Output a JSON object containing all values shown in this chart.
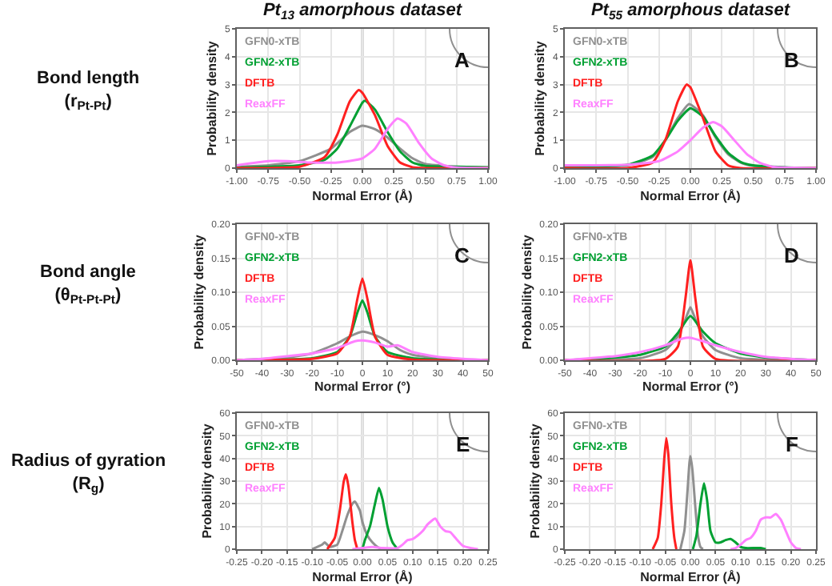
{
  "chart_data": [
    {
      "type": "line",
      "title": "Pt$_{13}$ amorphous dataset",
      "xlabel": "Normal Error (Å)",
      "ylabel": "Probability density",
      "annotations": [
        "A",
        "Bond length\n(r$_{Pt-Pt}$)"
      ],
      "legend": "top left",
      "grid": true,
      "xlim": [
        -1,
        1
      ],
      "ylim": [
        0,
        5
      ],
      "xticks": [
        {
          "value": -1,
          "label": "-1.00"
        },
        -0.75,
        {
          "value": -0.5,
          "label": "-0.50"
        },
        -0.25,
        {
          "value": 0,
          "label": "0.00"
        },
        0.25,
        {
          "value": 0.5,
          "label": "0.50"
        },
        0.75,
        {
          "value": 1,
          "label": "1.00"
        }
      ],
      "yticks": [
        0,
        1,
        2,
        3,
        4,
        5
      ],
      "ref_lines": [
        {
          "axis": "x",
          "value": 0,
          "color": "#b4b4b4"
        }
      ],
      "series": [
        {
          "name": "GFN0-xTB",
          "color": "#909090",
          "x": [
            -1,
            -0.75,
            -0.5,
            -0.25,
            -0.1,
            0,
            0.1,
            0.2,
            0.3,
            0.4,
            0.5,
            0.75,
            1
          ],
          "values": [
            0.05,
            0.1,
            0.25,
            0.7,
            1.3,
            1.52,
            1.4,
            1.1,
            0.7,
            0.35,
            0.15,
            0.05,
            0.02
          ]
        },
        {
          "name": "GFN2-xTB",
          "color": "#00a032",
          "x": [
            -1,
            -0.5,
            -0.3,
            -0.2,
            -0.1,
            0,
            0.02,
            0.1,
            0.2,
            0.3,
            0.4,
            0.5,
            0.75,
            1
          ],
          "values": [
            0.02,
            0.1,
            0.3,
            0.7,
            1.5,
            2.35,
            2.42,
            2.1,
            1.3,
            0.6,
            0.2,
            0.08,
            0.05,
            0.03
          ]
        },
        {
          "name": "DFTB",
          "color": "#ff2020",
          "x": [
            -1,
            -0.5,
            -0.3,
            -0.2,
            -0.1,
            -0.03,
            0,
            0.1,
            0.2,
            0.3,
            0.4,
            0.5,
            1
          ],
          "values": [
            0,
            0.05,
            0.4,
            1.2,
            2.4,
            2.8,
            2.7,
            1.9,
            0.8,
            0.2,
            0.03,
            0,
            0
          ]
        },
        {
          "name": "ReaxFF",
          "color": "#ff80ff",
          "x": [
            -1,
            -0.75,
            -0.6,
            -0.4,
            -0.2,
            0,
            0.1,
            0.2,
            0.28,
            0.35,
            0.45,
            0.55,
            0.65,
            0.75,
            1
          ],
          "values": [
            0.1,
            0.25,
            0.25,
            0.2,
            0.2,
            0.35,
            0.7,
            1.4,
            1.78,
            1.6,
            0.9,
            0.35,
            0.1,
            0.02,
            0
          ]
        }
      ]
    },
    {
      "type": "line",
      "title": "Pt$_{55}$ amorphous dataset",
      "xlabel": "Normal Error (Å)",
      "ylabel": "Probability density",
      "annotations": [
        "B"
      ],
      "legend": "top left",
      "grid": true,
      "xlim": [
        -1,
        1
      ],
      "ylim": [
        0,
        5
      ],
      "xticks": [
        {
          "value": -1,
          "label": "-1.00"
        },
        -0.75,
        {
          "value": -0.5,
          "label": "-0.50"
        },
        -0.25,
        {
          "value": 0,
          "label": "0.00"
        },
        0.25,
        {
          "value": 0.5,
          "label": "0.50"
        },
        0.75,
        {
          "value": 1,
          "label": "1.00"
        }
      ],
      "yticks": [
        0,
        1,
        2,
        3,
        4,
        5
      ],
      "ref_lines": [
        {
          "axis": "x",
          "value": 0,
          "color": "#b4b4b4"
        }
      ],
      "series": [
        {
          "name": "GFN0-xTB",
          "color": "#909090",
          "x": [
            -1,
            -0.5,
            -0.3,
            -0.2,
            -0.1,
            -0.01,
            0.1,
            0.2,
            0.3,
            0.4,
            0.5,
            0.75,
            1
          ],
          "values": [
            0.05,
            0.1,
            0.4,
            1.0,
            1.8,
            2.3,
            1.9,
            1.1,
            0.5,
            0.2,
            0.08,
            0.02,
            0
          ]
        },
        {
          "name": "GFN2-xTB",
          "color": "#00a032",
          "x": [
            -1,
            -0.5,
            -0.3,
            -0.2,
            -0.1,
            0,
            0.1,
            0.2,
            0.3,
            0.4,
            0.5,
            0.75,
            1
          ],
          "values": [
            0.05,
            0.12,
            0.45,
            1.0,
            1.7,
            2.15,
            1.85,
            1.15,
            0.55,
            0.22,
            0.1,
            0.03,
            0
          ]
        },
        {
          "name": "DFTB",
          "color": "#ff2020",
          "x": [
            -1,
            -0.5,
            -0.3,
            -0.2,
            -0.1,
            -0.03,
            0,
            0.1,
            0.2,
            0.3,
            0.4,
            1
          ],
          "values": [
            0,
            0,
            0.2,
            1.0,
            2.4,
            3.0,
            2.9,
            1.8,
            0.6,
            0.1,
            0,
            0
          ]
        },
        {
          "name": "ReaxFF",
          "color": "#ff80ff",
          "x": [
            -1,
            -0.5,
            -0.25,
            -0.1,
            0,
            0.1,
            0.18,
            0.25,
            0.35,
            0.45,
            0.55,
            0.65,
            0.75,
            1
          ],
          "values": [
            0.1,
            0.12,
            0.25,
            0.6,
            1.0,
            1.45,
            1.65,
            1.5,
            1.0,
            0.5,
            0.2,
            0.05,
            0.02,
            0
          ]
        }
      ]
    },
    {
      "type": "line",
      "xlabel": "Normal Error (°)",
      "ylabel": "Probability density",
      "annotations": [
        "C",
        "Bond angle\n(θ$_{Pt-Pt-Pt}$)"
      ],
      "legend": "top left",
      "grid": true,
      "xlim": [
        -50,
        50
      ],
      "ylim": [
        0,
        0.2
      ],
      "xticks": [
        -50,
        -40,
        -30,
        -20,
        -10,
        0,
        10,
        20,
        30,
        40,
        50
      ],
      "yticks": [
        {
          "value": 0,
          "label": "0.00"
        },
        0.05,
        {
          "value": 0.1,
          "label": "0.10"
        },
        0.15,
        {
          "value": 0.2,
          "label": "0.20"
        }
      ],
      "ref_lines": [
        {
          "axis": "x",
          "value": 0,
          "color": "#b4b4b4"
        }
      ],
      "series": [
        {
          "name": "GFN0-xTB",
          "color": "#909090",
          "x": [
            -50,
            -30,
            -20,
            -10,
            -5,
            0,
            5,
            10,
            15,
            20,
            30,
            50
          ],
          "values": [
            0,
            0.004,
            0.01,
            0.025,
            0.035,
            0.042,
            0.037,
            0.028,
            0.015,
            0.008,
            0.003,
            0
          ]
        },
        {
          "name": "GFN2-xTB",
          "color": "#00a032",
          "x": [
            -50,
            -20,
            -10,
            -5,
            -2,
            0,
            2,
            5,
            10,
            20,
            50
          ],
          "values": [
            0,
            0.003,
            0.012,
            0.035,
            0.07,
            0.088,
            0.07,
            0.035,
            0.012,
            0.003,
            0
          ]
        },
        {
          "name": "DFTB",
          "color": "#ff2020",
          "x": [
            -50,
            -20,
            -10,
            -5,
            -2,
            0,
            2,
            5,
            10,
            20,
            50
          ],
          "values": [
            0,
            0.002,
            0.01,
            0.035,
            0.09,
            0.12,
            0.09,
            0.035,
            0.008,
            0.001,
            0
          ]
        },
        {
          "name": "ReaxFF",
          "color": "#ff80ff",
          "x": [
            -50,
            -40,
            -30,
            -20,
            -10,
            -3,
            0,
            5,
            10,
            14,
            20,
            30,
            40,
            50
          ],
          "values": [
            0,
            0.002,
            0.006,
            0.01,
            0.018,
            0.028,
            0.029,
            0.026,
            0.02,
            0.022,
            0.012,
            0.005,
            0.002,
            0
          ]
        }
      ]
    },
    {
      "type": "line",
      "xlabel": "Normal Error (°)",
      "ylabel": "Probability density",
      "annotations": [
        "D"
      ],
      "legend": "top left",
      "grid": true,
      "xlim": [
        -50,
        50
      ],
      "ylim": [
        0,
        0.2
      ],
      "xticks": [
        -50,
        -40,
        -30,
        -20,
        -10,
        0,
        10,
        20,
        30,
        40,
        50
      ],
      "yticks": [
        {
          "value": 0,
          "label": "0.00"
        },
        0.05,
        {
          "value": 0.1,
          "label": "0.10"
        },
        0.15,
        {
          "value": 0.2,
          "label": "0.20"
        }
      ],
      "ref_lines": [
        {
          "axis": "x",
          "value": 0,
          "color": "#b4b4b4"
        }
      ],
      "series": [
        {
          "name": "GFN0-xTB",
          "color": "#909090",
          "x": [
            -50,
            -20,
            -10,
            -5,
            -2,
            0,
            2,
            5,
            10,
            20,
            50
          ],
          "values": [
            0,
            0.003,
            0.015,
            0.035,
            0.06,
            0.078,
            0.06,
            0.035,
            0.015,
            0.003,
            0
          ]
        },
        {
          "name": "GFN2-xTB",
          "color": "#00a032",
          "x": [
            -50,
            -30,
            -20,
            -10,
            -5,
            0,
            5,
            10,
            20,
            30,
            50
          ],
          "values": [
            0,
            0.004,
            0.008,
            0.02,
            0.04,
            0.065,
            0.042,
            0.025,
            0.01,
            0.004,
            0
          ]
        },
        {
          "name": "DFTB",
          "color": "#ff2020",
          "x": [
            -50,
            -10,
            -5,
            -2,
            0,
            2,
            5,
            10,
            50
          ],
          "values": [
            0,
            0.002,
            0.02,
            0.09,
            0.147,
            0.09,
            0.02,
            0.002,
            0
          ]
        },
        {
          "name": "ReaxFF",
          "color": "#ff80ff",
          "x": [
            -50,
            -40,
            -30,
            -20,
            -10,
            -3,
            0,
            5,
            10,
            20,
            30,
            40,
            50
          ],
          "values": [
            0,
            0.003,
            0.006,
            0.012,
            0.022,
            0.032,
            0.033,
            0.028,
            0.022,
            0.012,
            0.005,
            0.002,
            0
          ]
        }
      ]
    },
    {
      "type": "line",
      "xlabel": "Normal Error (Å)",
      "ylabel": "Probability density",
      "annotations": [
        "E",
        "Radius of gyration\n(R$_{g}$)"
      ],
      "legend": "top left",
      "grid": true,
      "xlim": [
        -0.25,
        0.25
      ],
      "ylim": [
        0,
        60
      ],
      "xticks": [
        -0.25,
        {
          "value": -0.2,
          "label": "-0.20"
        },
        -0.15,
        {
          "value": -0.1,
          "label": "-0.10"
        },
        -0.05,
        {
          "value": 0,
          "label": "0.00"
        },
        0.05,
        {
          "value": 0.1,
          "label": "0.10"
        },
        0.15,
        {
          "value": 0.2,
          "label": "0.20"
        },
        0.25
      ],
      "yticks": [
        0,
        10,
        20,
        30,
        40,
        50,
        60
      ],
      "ref_lines": [
        {
          "axis": "x",
          "value": 0,
          "color": "#b4b4b4"
        }
      ],
      "series": [
        {
          "name": "GFN0-xTB",
          "color": "#909090",
          "x": [
            -0.1,
            -0.08,
            -0.075,
            -0.065,
            -0.05,
            -0.04,
            -0.03,
            -0.02,
            -0.015,
            -0.005,
            0,
            0.01,
            0.02,
            0.03,
            0.04
          ],
          "values": [
            0,
            2,
            3,
            1,
            2,
            8,
            15,
            20,
            21,
            17,
            12,
            6,
            3,
            1,
            0
          ]
        },
        {
          "name": "GFN2-xTB",
          "color": "#00a032",
          "x": [
            0,
            0.005,
            0.015,
            0.025,
            0.033,
            0.04,
            0.05,
            0.06,
            0.07
          ],
          "values": [
            0,
            4,
            10,
            20,
            27,
            22,
            10,
            3,
            0
          ]
        },
        {
          "name": "DFTB",
          "color": "#ff2020",
          "x": [
            -0.07,
            -0.055,
            -0.045,
            -0.037,
            -0.033,
            -0.028,
            -0.02,
            -0.015,
            -0.01
          ],
          "values": [
            0,
            5,
            17,
            30,
            33,
            28,
            12,
            4,
            0
          ]
        },
        {
          "name": "ReaxFF",
          "color": "#ff80ff",
          "x": [
            -0.02,
            0,
            0.02,
            0.04,
            0.07,
            0.08,
            0.09,
            0.1,
            0.11,
            0.12,
            0.13,
            0.145,
            0.155,
            0.165,
            0.175,
            0.185,
            0.2,
            0.215,
            0.23
          ],
          "values": [
            0,
            0.5,
            1,
            0.5,
            0.5,
            2,
            4,
            4.5,
            6,
            8,
            11,
            13.5,
            10,
            8,
            7.5,
            5,
            1.5,
            0.5,
            0
          ]
        }
      ]
    },
    {
      "type": "line",
      "xlabel": "Normal Error (Å)",
      "ylabel": "Probability density",
      "annotations": [
        "F"
      ],
      "legend": "top left",
      "grid": true,
      "xlim": [
        -0.25,
        0.25
      ],
      "ylim": [
        0,
        60
      ],
      "xticks": [
        -0.25,
        {
          "value": -0.2,
          "label": "-0.20"
        },
        -0.15,
        {
          "value": -0.1,
          "label": "-0.10"
        },
        -0.05,
        {
          "value": 0,
          "label": "0.00"
        },
        0.05,
        {
          "value": 0.1,
          "label": "0.10"
        },
        0.15,
        {
          "value": 0.2,
          "label": "0.20"
        },
        0.25
      ],
      "yticks": [
        0,
        10,
        20,
        30,
        40,
        50,
        60
      ],
      "ref_lines": [
        {
          "axis": "x",
          "value": 0,
          "color": "#b4b4b4"
        }
      ],
      "series": [
        {
          "name": "GFN0-xTB",
          "color": "#909090",
          "x": [
            -0.02,
            -0.012,
            -0.006,
            -0.002,
            0,
            0.004,
            0.01,
            0.015,
            0.02,
            0.025
          ],
          "values": [
            0,
            8,
            25,
            38,
            41,
            35,
            18,
            6,
            1,
            0
          ]
        },
        {
          "name": "GFN2-xTB",
          "color": "#00a032",
          "x": [
            0.005,
            0.012,
            0.02,
            0.027,
            0.033,
            0.04,
            0.05,
            0.06,
            0.07,
            0.08,
            0.09,
            0.1,
            0.11,
            0.14,
            0.15
          ],
          "values": [
            0,
            6,
            20,
            29,
            22,
            8,
            3,
            3,
            4,
            4.5,
            3,
            1,
            0.5,
            0.5,
            0
          ]
        },
        {
          "name": "DFTB",
          "color": "#ff2020",
          "x": [
            -0.075,
            -0.065,
            -0.058,
            -0.052,
            -0.048,
            -0.044,
            -0.038,
            -0.032,
            -0.028
          ],
          "values": [
            0,
            5,
            20,
            40,
            49,
            42,
            20,
            5,
            0
          ]
        },
        {
          "name": "ReaxFF",
          "color": "#ff80ff",
          "x": [
            0.08,
            0.09,
            0.1,
            0.11,
            0.12,
            0.13,
            0.14,
            0.15,
            0.16,
            0.17,
            0.18,
            0.19,
            0.2,
            0.21,
            0.22
          ],
          "values": [
            0,
            0.5,
            2,
            4,
            5,
            8,
            13,
            14,
            14,
            15.5,
            13,
            8,
            3,
            0.5,
            0
          ]
        }
      ]
    }
  ]
}
